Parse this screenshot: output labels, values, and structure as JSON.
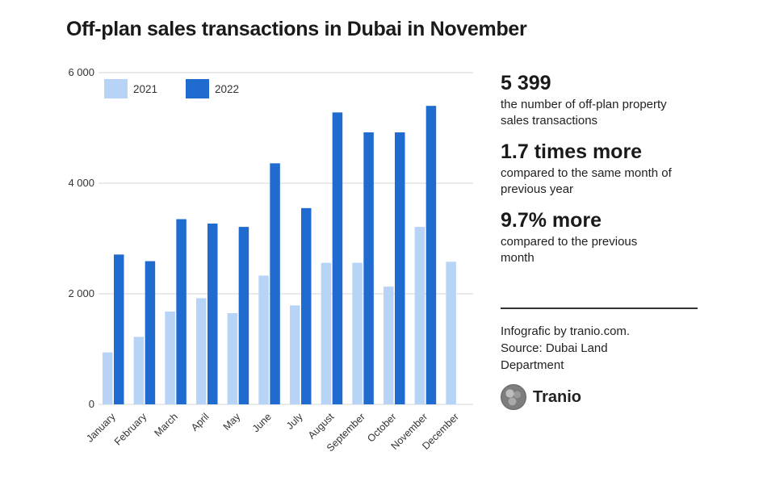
{
  "title": "Off-plan sales transactions in Dubai in November",
  "colors": {
    "series_2021": "#b7d3f6",
    "series_2022": "#1f6bd0",
    "grid": "#d4d4d4"
  },
  "chart_data": {
    "type": "bar",
    "title": "Off-plan sales transactions in Dubai in November",
    "categories": [
      "January",
      "February",
      "March",
      "April",
      "May",
      "June",
      "July",
      "August",
      "September",
      "October",
      "November",
      "December"
    ],
    "series": [
      {
        "name": "2021",
        "values": [
          940,
          1220,
          1680,
          1920,
          1650,
          2330,
          1790,
          2560,
          2560,
          2130,
          3210,
          2580
        ]
      },
      {
        "name": "2022",
        "values": [
          2710,
          2590,
          3350,
          3270,
          3210,
          4360,
          3550,
          5280,
          4920,
          4920,
          5399,
          null
        ]
      }
    ],
    "yticks": [
      "0",
      "2 000",
      "4 000",
      "6 000"
    ],
    "ytick_values": [
      0,
      2000,
      4000,
      6000
    ],
    "ylim": [
      0,
      6000
    ],
    "grid": true,
    "legend_position": "top-left"
  },
  "stats": [
    {
      "value": "5 399",
      "desc": "the number of off-plan property sales transactions"
    },
    {
      "value": "1.7 times more",
      "desc": "compared to the same month of previous year"
    },
    {
      "value": "9.7% more",
      "desc": "compared to the previous month"
    }
  ],
  "source": {
    "line1": "Infografic by tranio.com.",
    "line2": "Source: Dubai Land",
    "line3": "Department"
  },
  "brand": {
    "name": "Tranio",
    "icon": "tranio-logo-icon"
  }
}
